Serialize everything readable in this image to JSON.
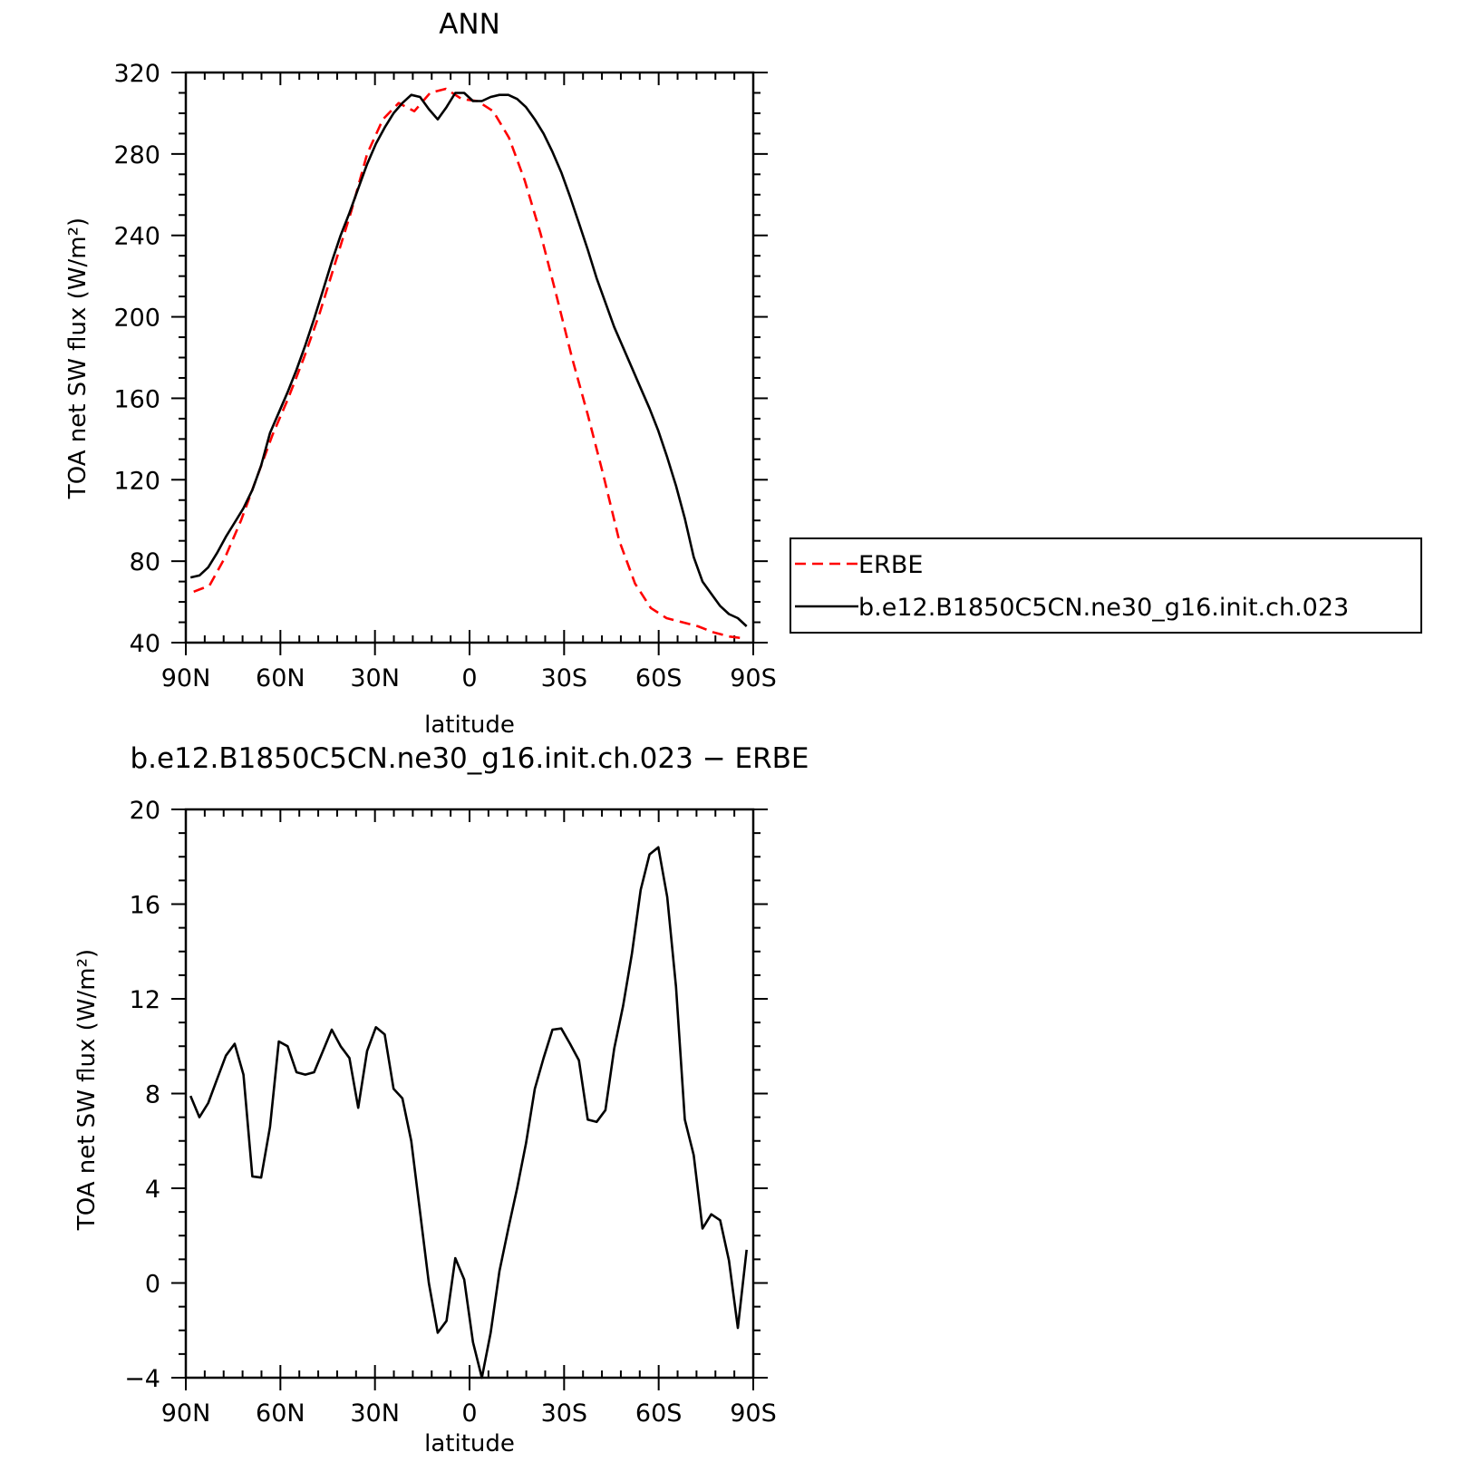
{
  "chart_data": [
    {
      "type": "line",
      "title": "ANN",
      "xlabel": "latitude",
      "ylabel": "TOA net SW flux (W/m²)",
      "xlim": [
        -90,
        90
      ],
      "ylim": [
        40,
        320
      ],
      "x_ticks": [
        -90,
        -60,
        -30,
        0,
        30,
        60,
        90
      ],
      "x_tick_labels": [
        "90N",
        "60N",
        "30N",
        "0",
        "30S",
        "60S",
        "90S"
      ],
      "y_ticks": [
        40,
        80,
        120,
        160,
        200,
        240,
        280,
        320
      ],
      "y_tick_labels": [
        "40",
        "80",
        "120",
        "160",
        "200",
        "240",
        "280",
        "320"
      ],
      "legend": {
        "placement": "right",
        "entries": [
          "ERBE",
          "b.e12.B1850C5CN.ne30_g16.init.ch.023"
        ]
      },
      "series": [
        {
          "name": "ERBE",
          "color": "#ff0000",
          "dash": "dashed",
          "x": [
            -87.5,
            -82.5,
            -77.5,
            -72.5,
            -67.5,
            -62.5,
            -57.5,
            -52.5,
            -47.5,
            -42.5,
            -37.5,
            -32.5,
            -27.5,
            -22.5,
            -17.5,
            -12.5,
            -7.5,
            -2.5,
            2.5,
            7.5,
            12.5,
            17.5,
            22.5,
            27.5,
            32.5,
            37.5,
            42.5,
            47.5,
            52.5,
            57.5,
            62.5,
            67.5,
            72.5,
            77.5,
            82.5,
            87.5
          ],
          "y": [
            65,
            68,
            82,
            100,
            121,
            142,
            160,
            180,
            202,
            227,
            252,
            280,
            297,
            305,
            301,
            310,
            312,
            307,
            306,
            301,
            288,
            267,
            241,
            211,
            180,
            152,
            122,
            90,
            69,
            57,
            52,
            50,
            48,
            45,
            43,
            42
          ]
        },
        {
          "name": "b.e12.B1850C5CN.ne30_g16.init.ch.023",
          "color": "#000000",
          "dash": "solid",
          "x": [
            -88.5,
            -85.7,
            -82.9,
            -80.1,
            -77.3,
            -74.5,
            -71.7,
            -68.9,
            -66.1,
            -63.3,
            -60.5,
            -57.7,
            -54.9,
            -52.1,
            -49.3,
            -46.5,
            -43.7,
            -40.9,
            -38.1,
            -35.3,
            -32.5,
            -29.7,
            -26.9,
            -24.1,
            -21.3,
            -18.5,
            -15.7,
            -12.9,
            -10.1,
            -7.3,
            -4.5,
            -1.7,
            1.1,
            3.9,
            6.7,
            9.5,
            12.3,
            15.1,
            17.9,
            20.7,
            23.5,
            26.3,
            29.1,
            31.9,
            34.7,
            37.5,
            40.3,
            43.1,
            45.9,
            48.7,
            51.5,
            54.3,
            57.1,
            59.9,
            62.7,
            65.5,
            68.3,
            71.1,
            73.9,
            76.7,
            79.5,
            82.3,
            85.1,
            87.9
          ],
          "y": [
            72,
            73,
            77,
            84,
            92,
            99,
            106,
            115,
            127,
            143,
            153,
            163,
            174,
            186,
            199,
            213,
            227,
            240,
            251,
            263,
            275,
            285,
            293,
            300,
            305,
            309,
            308,
            302,
            297,
            303,
            310,
            310,
            306,
            306,
            308,
            309,
            309,
            307,
            303,
            297,
            290,
            281,
            271,
            259,
            246,
            233,
            219,
            207,
            195,
            185,
            175,
            165,
            155,
            144,
            131,
            117,
            101,
            82,
            70,
            64,
            58,
            54,
            52,
            48
          ]
        }
      ]
    },
    {
      "type": "line",
      "title": "b.e12.B1850C5CN.ne30_g16.init.ch.023 − ERBE",
      "xlabel": "latitude",
      "ylabel": "TOA net SW flux (W/m²)",
      "xlim": [
        -90,
        90
      ],
      "ylim": [
        -4,
        20
      ],
      "x_ticks": [
        -90,
        -60,
        -30,
        0,
        30,
        60,
        90
      ],
      "x_tick_labels": [
        "90N",
        "60N",
        "30N",
        "0",
        "30S",
        "60S",
        "90S"
      ],
      "y_ticks": [
        -4,
        0,
        4,
        8,
        12,
        16,
        20
      ],
      "y_tick_labels": [
        "−4",
        "0",
        "4",
        "8",
        "12",
        "16",
        "20"
      ],
      "series": [
        {
          "color": "#000000",
          "dash": "solid",
          "x": [
            -88.5,
            -85.7,
            -82.9,
            -80.1,
            -77.3,
            -74.5,
            -71.7,
            -68.9,
            -66.1,
            -63.3,
            -60.5,
            -57.7,
            -54.9,
            -52.1,
            -49.3,
            -46.5,
            -43.7,
            -40.9,
            -38.1,
            -35.3,
            -32.5,
            -29.7,
            -26.9,
            -24.1,
            -21.3,
            -18.5,
            -15.7,
            -12.9,
            -10.1,
            -7.3,
            -4.5,
            -1.7,
            1.1,
            3.9,
            6.7,
            9.5,
            12.3,
            15.1,
            17.9,
            20.7,
            23.5,
            26.3,
            29.1,
            31.9,
            34.7,
            37.5,
            40.3,
            43.1,
            45.9,
            48.7,
            51.5,
            54.3,
            57.1,
            59.9,
            62.7,
            65.5,
            68.3,
            71.1,
            73.9,
            76.7,
            79.5,
            82.3,
            85.1,
            87.9
          ],
          "y": [
            7.9,
            7.0,
            7.6,
            8.6,
            9.6,
            10.1,
            8.8,
            4.5,
            4.45,
            6.6,
            10.2,
            10.0,
            8.9,
            8.8,
            8.9,
            9.8,
            10.7,
            10.0,
            9.5,
            7.4,
            9.8,
            10.8,
            10.5,
            8.2,
            7.8,
            6.0,
            3.0,
            0.0,
            -2.1,
            -1.6,
            1.05,
            0.15,
            -2.5,
            -4.0,
            -2.1,
            0.5,
            2.3,
            4.0,
            5.9,
            8.2,
            9.5,
            10.7,
            10.75,
            10.1,
            9.4,
            6.9,
            6.8,
            7.3,
            9.9,
            11.7,
            13.9,
            16.6,
            18.1,
            18.4,
            16.3,
            12.5,
            6.9,
            5.4,
            2.3,
            2.9,
            2.65,
            0.95,
            -1.9,
            1.4
          ]
        }
      ]
    }
  ]
}
